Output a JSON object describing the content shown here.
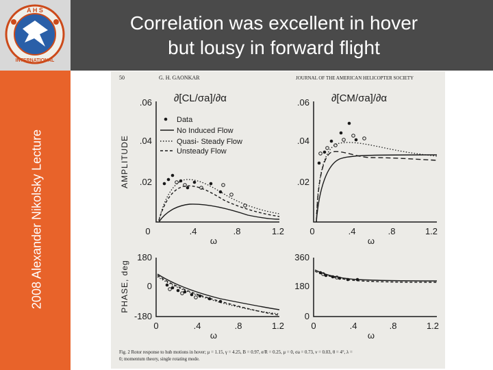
{
  "slide": {
    "title_line1": "Correlation was excellent in hover",
    "title_line2": "but lousy in forward flight",
    "sidebar_text": "2008 Alexander Nikolsky Lecture",
    "logo_text": "A H S",
    "logo_ring_text": "INTERNATIONAL",
    "colors": {
      "header": "#4a4a4a",
      "sidebar": "#e8632a",
      "figure_bg": "#ecebe7",
      "ink": "#1a1a1a"
    }
  },
  "figure": {
    "page_number": "50",
    "author": "G. H. GAONKAR",
    "journal": "JOURNAL OF THE AMERICAN HELICOPTER SOCIETY",
    "ylabel_amplitude": "AMPLITUDE",
    "ylabel_phase": "PHASE, deg",
    "xlabel": "ω",
    "panel_left_title": "∂[CL/σa]/∂α",
    "panel_right_title": "∂[CM/σa]/∂α",
    "legend": [
      "Data",
      "No Induced Flow",
      "Quasi- Steady Flow",
      "Unsteady Flow"
    ],
    "x_ticks": [
      "0",
      ".4",
      ".8",
      "1.2"
    ],
    "amp_ticks": [
      ".06",
      ".04",
      ".02"
    ],
    "phase_left_ticks": [
      "180",
      "0",
      "-180"
    ],
    "phase_right_ticks": [
      "360",
      "180",
      "0"
    ],
    "caption_line1": "Fig. 2   Rotor response to hub motions in hover; μ = 1.15, γ = 4.25, B = 0.97, e/R = 0.25, μ = 0, σa = 0.73, ν = 0.03, θ = 4°, λ =",
    "caption_line2": "0; momentum theory, single rotating mode."
  }
}
